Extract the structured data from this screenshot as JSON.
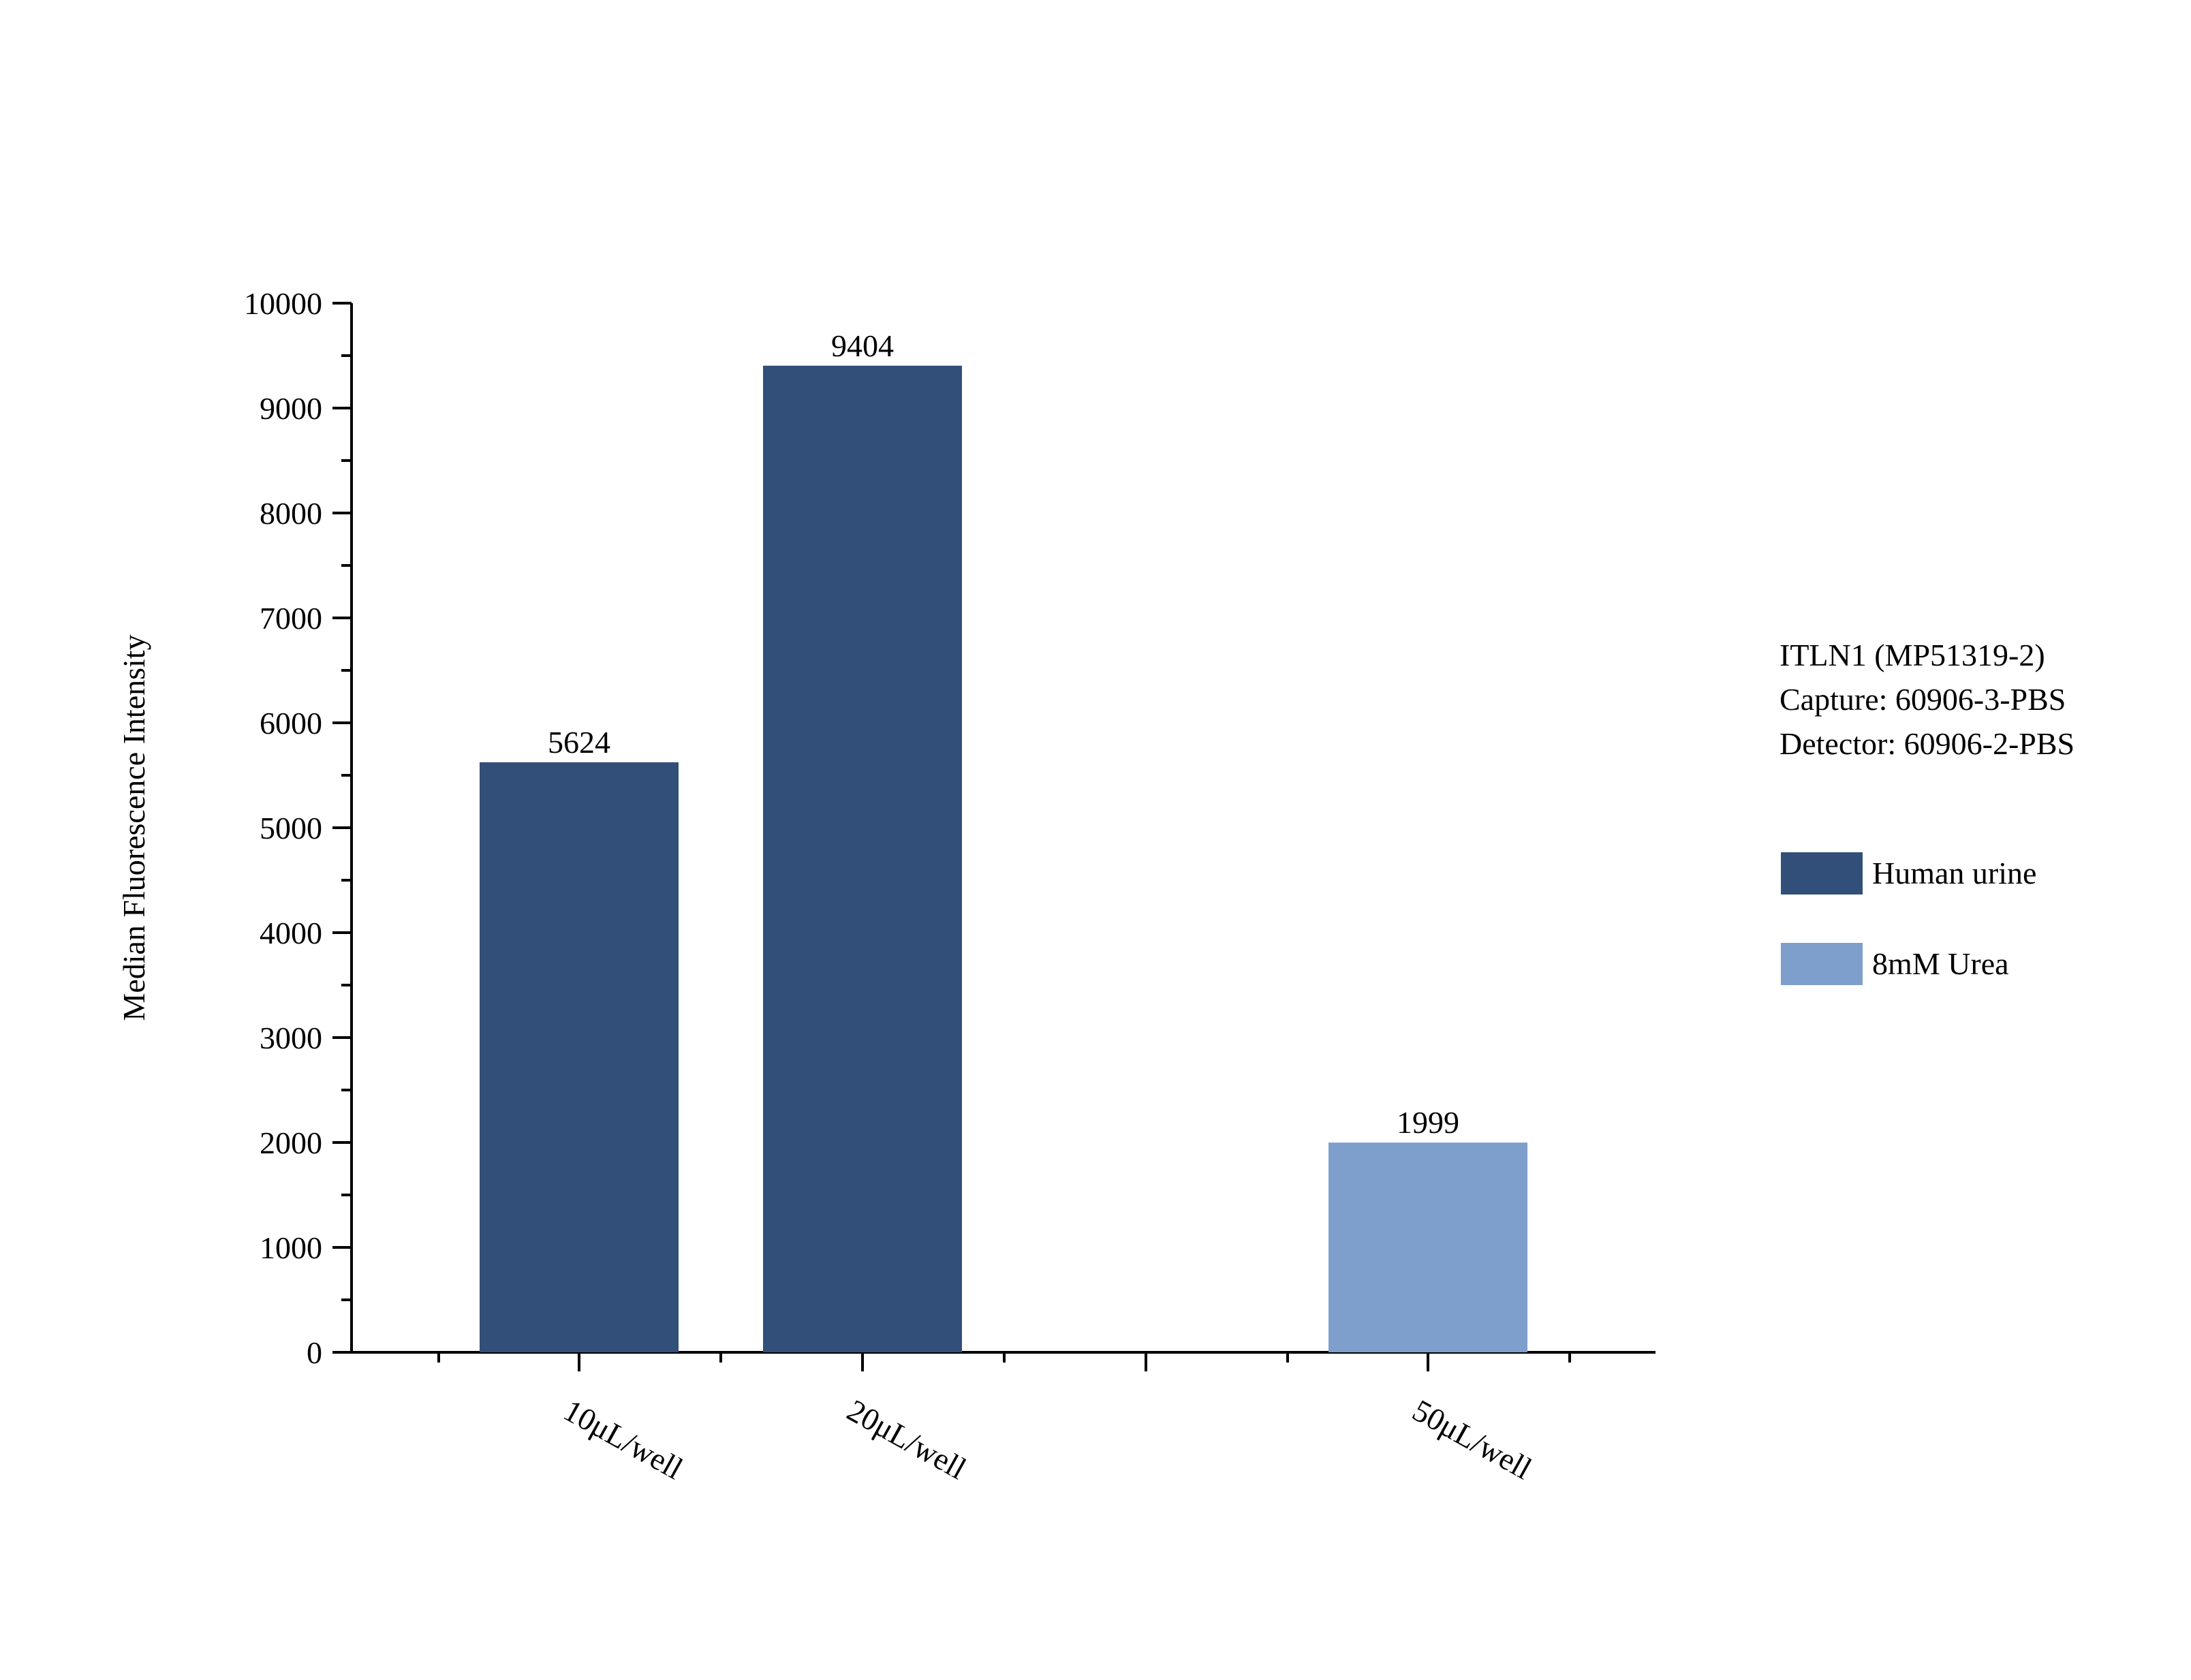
{
  "chart_data": {
    "type": "bar",
    "title": "",
    "xlabel": "",
    "ylabel": "Median Fluorescence Intensity",
    "ylim": [
      0,
      10000
    ],
    "yticks": [
      "0",
      "1000",
      "2000",
      "3000",
      "4000",
      "5000",
      "6000",
      "7000",
      "8000",
      "9000",
      "10000"
    ],
    "categories": [
      "10μL/well",
      "20μL/well",
      "",
      "50μL/well"
    ],
    "series": [
      {
        "name": "Human urine",
        "color": "#314f78",
        "values": [
          5624,
          9404,
          null,
          null
        ]
      },
      {
        "name": "8mM Urea",
        "color": "#7e9ecc",
        "values": [
          null,
          null,
          null,
          1999
        ]
      }
    ],
    "data_labels": [
      "5624",
      "9404",
      "",
      "1999"
    ],
    "annotation": {
      "lines": [
        "ITLN1 (MP51319-2)",
        "Capture: 60906-3-PBS",
        "Detector: 60906-2-PBS"
      ]
    },
    "legend": {
      "placement": "right"
    },
    "grid": false
  }
}
